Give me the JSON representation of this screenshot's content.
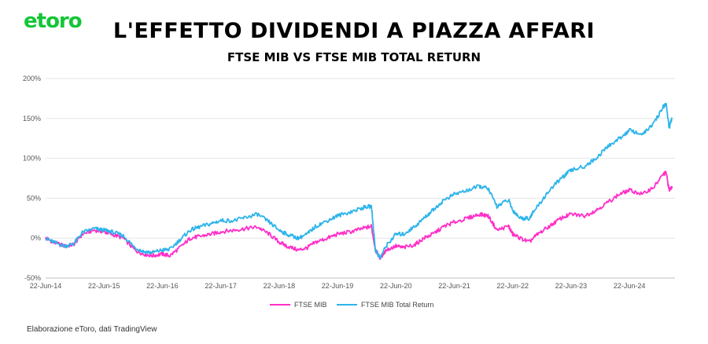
{
  "header": {
    "logo_text": "etoro",
    "logo_color": "#13c636",
    "title": "L'EFFETTO DIVIDENDI A PIAZZA AFFARI",
    "subtitle": "FTSE MIB VS FTSE MIB TOTAL RETURN"
  },
  "footer": {
    "source": "Elaborazione eToro, dati TradingView"
  },
  "chart_data": {
    "type": "line",
    "title": "FTSE MIB VS FTSE MIB TOTAL RETURN",
    "xlabel": "",
    "ylabel": "",
    "ylim": [
      -50,
      200
    ],
    "xlim": [
      2014.47,
      2025.25
    ],
    "y_ticks": [
      -50,
      0,
      50,
      100,
      150,
      200
    ],
    "y_tick_labels": [
      "-50%",
      "0%",
      "50%",
      "100%",
      "150%",
      "200%"
    ],
    "x_ticks": [
      2014.47,
      2015.47,
      2016.47,
      2017.47,
      2018.47,
      2019.47,
      2020.47,
      2021.47,
      2022.47,
      2023.47,
      2024.47
    ],
    "x_tick_labels": [
      "22-Jun-14",
      "22-Jun-15",
      "22-Jun-16",
      "22-Jun-17",
      "22-Jun-18",
      "22-Jun-19",
      "22-Jun-20",
      "22-Jun-21",
      "22-Jun-22",
      "22-Jun-23",
      "22-Jun-24"
    ],
    "grid": "horizontal",
    "legend_position": "bottom-center",
    "series": [
      {
        "name": "FTSE MIB",
        "color": "#ff2fc8",
        "x": [
          2014.47,
          2014.6,
          2014.8,
          2014.95,
          2015.1,
          2015.3,
          2015.47,
          2015.6,
          2015.8,
          2016.0,
          2016.15,
          2016.3,
          2016.47,
          2016.6,
          2016.8,
          2016.95,
          2017.1,
          2017.3,
          2017.47,
          2017.7,
          2017.9,
          2018.1,
          2018.3,
          2018.47,
          2018.6,
          2018.8,
          2018.95,
          2019.1,
          2019.3,
          2019.47,
          2019.7,
          2019.9,
          2020.05,
          2020.12,
          2020.2,
          2020.3,
          2020.47,
          2020.6,
          2020.8,
          2020.95,
          2021.1,
          2021.3,
          2021.47,
          2021.7,
          2021.9,
          2022.05,
          2022.2,
          2022.4,
          2022.47,
          2022.6,
          2022.75,
          2022.9,
          2023.1,
          2023.3,
          2023.47,
          2023.7,
          2023.9,
          2024.1,
          2024.3,
          2024.47,
          2024.7,
          2024.9,
          2025.05,
          2025.1,
          2025.15,
          2025.2
        ],
        "values": [
          0,
          -5,
          -10,
          -8,
          5,
          10,
          8,
          5,
          0,
          -15,
          -20,
          -22,
          -20,
          -22,
          -10,
          0,
          2,
          5,
          8,
          10,
          12,
          14,
          5,
          -5,
          -10,
          -15,
          -12,
          -5,
          0,
          5,
          8,
          12,
          15,
          -15,
          -25,
          -15,
          -10,
          -12,
          -8,
          0,
          5,
          15,
          20,
          25,
          30,
          28,
          10,
          15,
          5,
          0,
          -5,
          5,
          15,
          25,
          30,
          28,
          35,
          45,
          55,
          60,
          55,
          65,
          80,
          82,
          60,
          65
        ]
      },
      {
        "name": "FTSE MIB Total Return",
        "color": "#2db4ea",
        "x": [
          2014.47,
          2014.6,
          2014.8,
          2014.95,
          2015.1,
          2015.3,
          2015.47,
          2015.6,
          2015.8,
          2016.0,
          2016.15,
          2016.3,
          2016.47,
          2016.6,
          2016.8,
          2016.95,
          2017.1,
          2017.3,
          2017.47,
          2017.7,
          2017.9,
          2018.1,
          2018.3,
          2018.47,
          2018.6,
          2018.8,
          2018.95,
          2019.1,
          2019.3,
          2019.47,
          2019.7,
          2019.9,
          2020.05,
          2020.12,
          2020.2,
          2020.3,
          2020.47,
          2020.6,
          2020.8,
          2020.95,
          2021.1,
          2021.3,
          2021.47,
          2021.7,
          2021.9,
          2022.05,
          2022.2,
          2022.4,
          2022.47,
          2022.6,
          2022.75,
          2022.9,
          2023.1,
          2023.3,
          2023.47,
          2023.7,
          2023.9,
          2024.1,
          2024.3,
          2024.47,
          2024.7,
          2024.9,
          2025.05,
          2025.1,
          2025.15,
          2025.2
        ],
        "values": [
          0,
          -5,
          -10,
          -7,
          7,
          12,
          10,
          8,
          3,
          -12,
          -17,
          -18,
          -15,
          -14,
          0,
          10,
          14,
          18,
          22,
          22,
          26,
          30,
          20,
          10,
          5,
          0,
          5,
          15,
          22,
          28,
          33,
          38,
          40,
          -15,
          -25,
          -10,
          5,
          5,
          15,
          25,
          35,
          48,
          55,
          60,
          65,
          62,
          40,
          48,
          35,
          25,
          25,
          40,
          60,
          75,
          85,
          90,
          100,
          115,
          125,
          135,
          130,
          145,
          165,
          168,
          138,
          150
        ]
      }
    ]
  }
}
